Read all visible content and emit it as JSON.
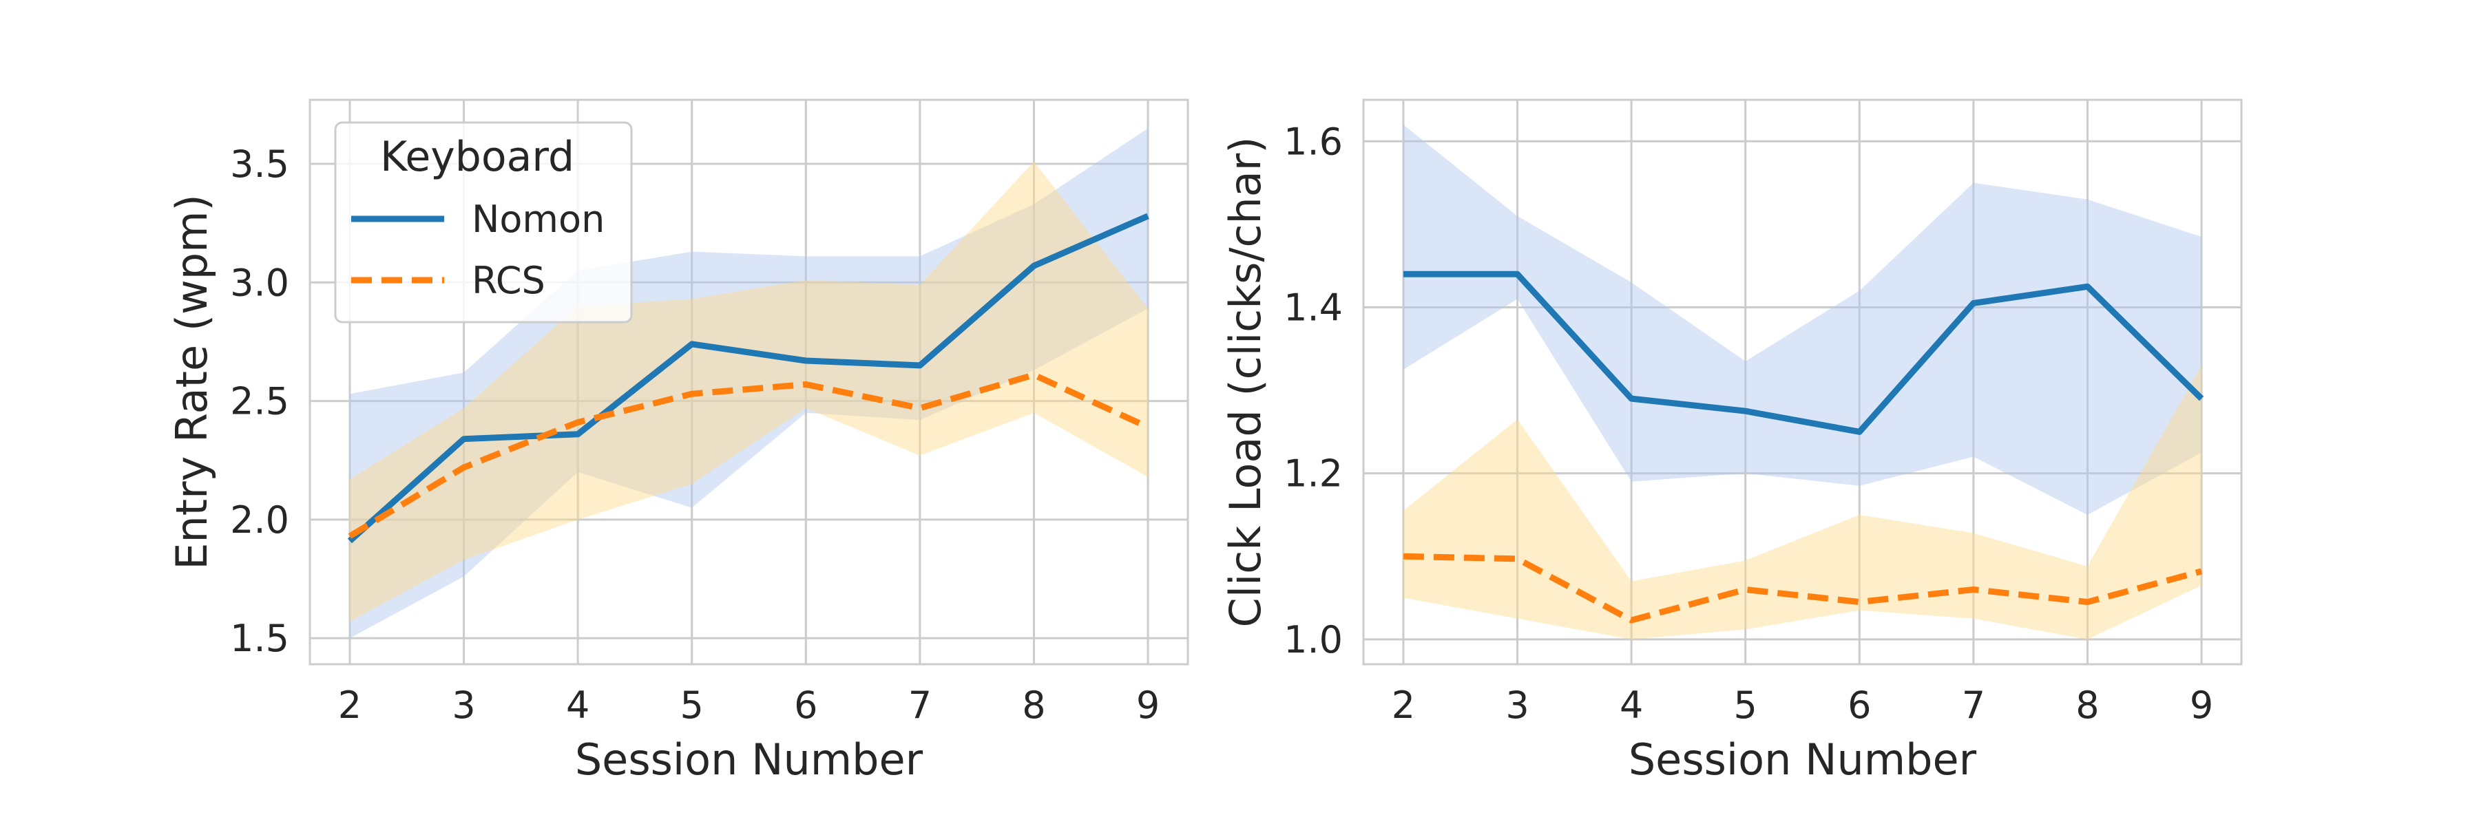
{
  "legend": {
    "title": "Keyboard",
    "entries": [
      "Nomon",
      "RCS"
    ]
  },
  "colors": {
    "nomon_line": "#1f77b4",
    "nomon_band": "#aec7f0",
    "rcs_line": "#ff7f0e",
    "rcs_band": "#ffd98a"
  },
  "chart_data": [
    {
      "type": "line",
      "xlabel": "Session Number",
      "ylabel": "Entry Rate (wpm)",
      "x": [
        2,
        3,
        4,
        5,
        6,
        7,
        8,
        9
      ],
      "xlim": [
        1.65,
        9.35
      ],
      "ylim": [
        1.39,
        3.77
      ],
      "yticks": [
        1.5,
        2.0,
        2.5,
        3.0,
        3.5
      ],
      "ytick_labels": [
        "1.5",
        "2.0",
        "2.5",
        "3.0",
        "3.5"
      ],
      "grid": true,
      "legend_position": "top-left",
      "series": [
        {
          "name": "Nomon",
          "style": "solid",
          "values": [
            1.91,
            2.34,
            2.36,
            2.74,
            2.67,
            2.65,
            3.07,
            3.28
          ],
          "ci_low": [
            1.5,
            1.76,
            2.2,
            2.05,
            2.45,
            2.42,
            2.63,
            2.89
          ],
          "ci_high": [
            2.53,
            2.62,
            3.05,
            3.13,
            3.11,
            3.11,
            3.33,
            3.65
          ]
        },
        {
          "name": "RCS",
          "style": "dashed",
          "values": [
            1.93,
            2.22,
            2.41,
            2.53,
            2.57,
            2.47,
            2.61,
            2.39
          ],
          "ci_low": [
            1.57,
            1.83,
            2.0,
            2.15,
            2.47,
            2.27,
            2.45,
            2.18
          ],
          "ci_high": [
            2.17,
            2.47,
            2.9,
            2.93,
            3.01,
            2.99,
            3.51,
            2.89
          ]
        }
      ]
    },
    {
      "type": "line",
      "xlabel": "Session Number",
      "ylabel": "Click Load (clicks/char)",
      "x": [
        2,
        3,
        4,
        5,
        6,
        7,
        8,
        9
      ],
      "xlim": [
        1.65,
        9.35
      ],
      "ylim": [
        0.97,
        1.65
      ],
      "yticks": [
        1.0,
        1.2,
        1.4,
        1.6
      ],
      "ytick_labels": [
        "1.0",
        "1.2",
        "1.4",
        "1.6"
      ],
      "grid": true,
      "series": [
        {
          "name": "Nomon",
          "style": "solid",
          "values": [
            1.44,
            1.44,
            1.29,
            1.275,
            1.25,
            1.405,
            1.425,
            1.29
          ],
          "ci_low": [
            1.325,
            1.41,
            1.19,
            1.2,
            1.185,
            1.22,
            1.15,
            1.225
          ],
          "ci_high": [
            1.62,
            1.51,
            1.43,
            1.335,
            1.42,
            1.55,
            1.53,
            1.485
          ]
        },
        {
          "name": "RCS",
          "style": "dashed",
          "values": [
            1.1,
            1.097,
            1.023,
            1.06,
            1.045,
            1.06,
            1.045,
            1.082
          ],
          "ci_low": [
            1.05,
            1.025,
            1.0,
            1.012,
            1.035,
            1.025,
            1.0,
            1.065
          ],
          "ci_high": [
            1.155,
            1.265,
            1.07,
            1.095,
            1.15,
            1.128,
            1.088,
            1.33
          ]
        }
      ]
    }
  ]
}
